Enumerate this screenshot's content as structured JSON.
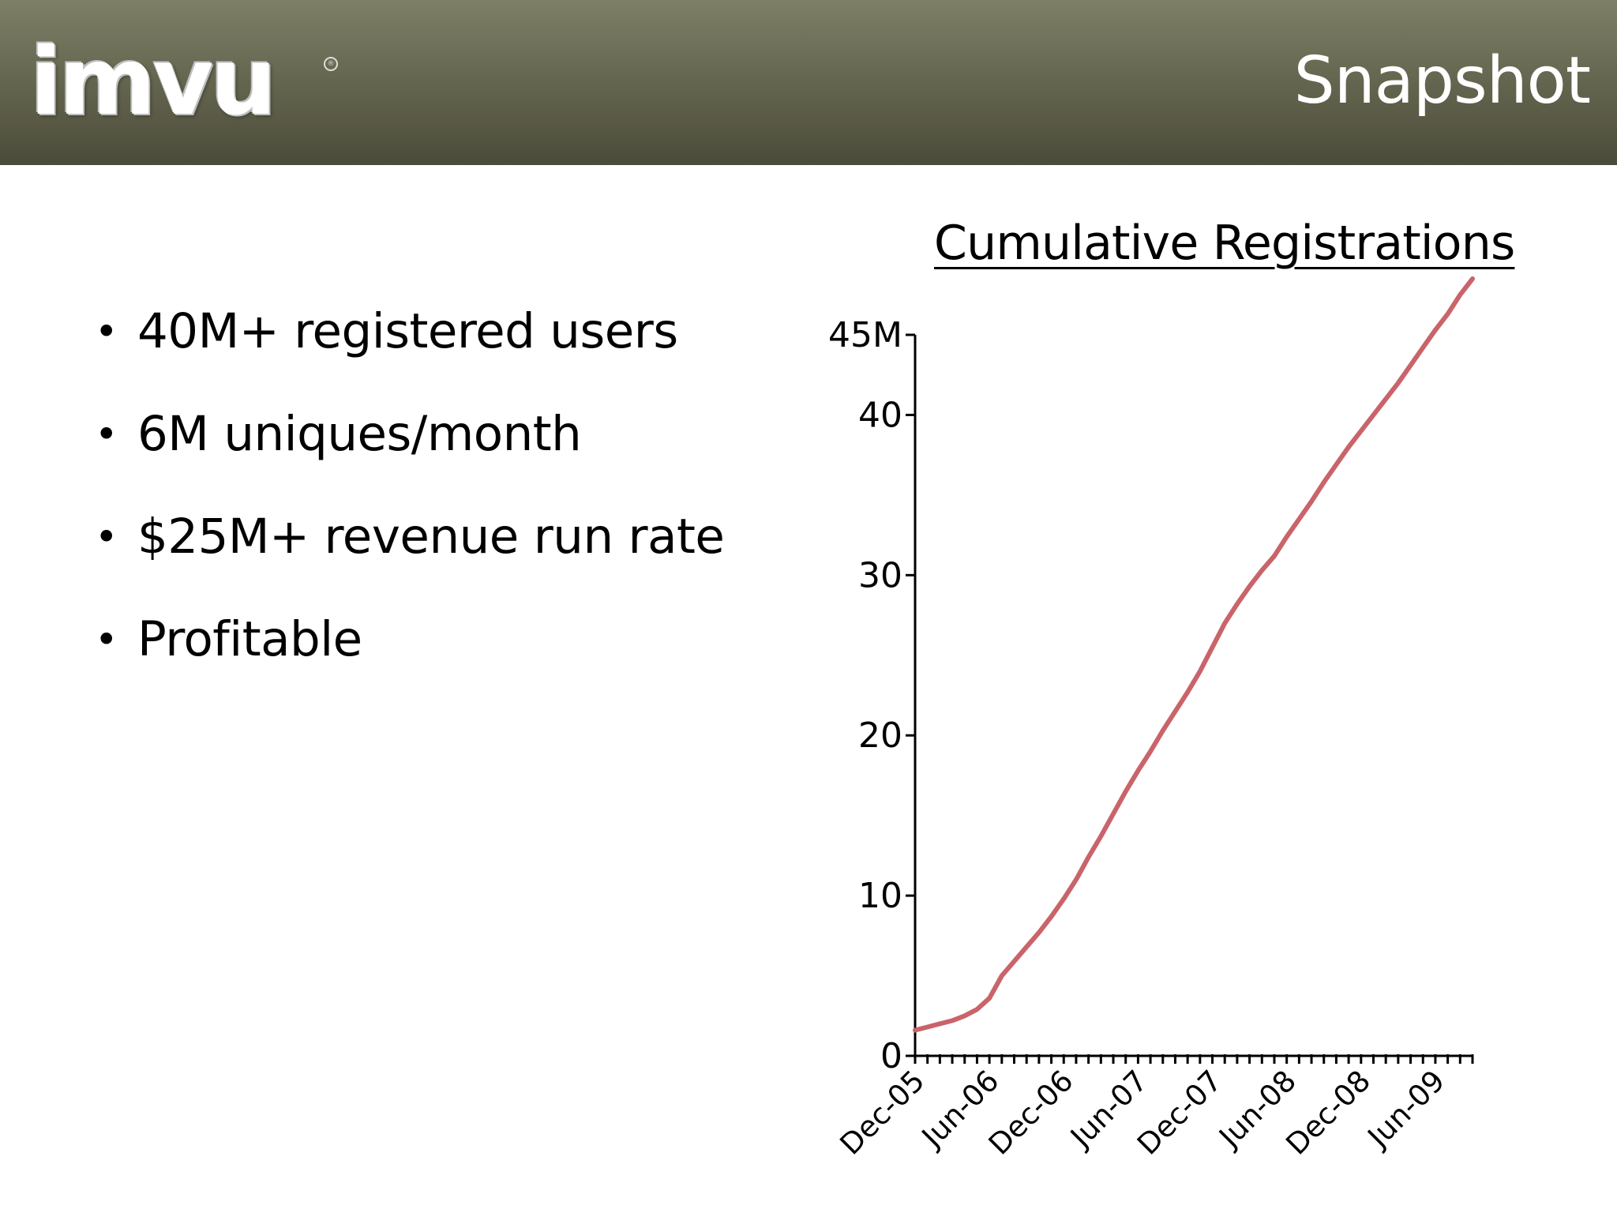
{
  "header": {
    "logo_text": "imvu",
    "logo_reg": "®",
    "title": "Snapshot"
  },
  "bullets": [
    "40M+ registered users",
    "6M uniques/month",
    "$25M+ revenue run rate",
    "Profitable"
  ],
  "colors": {
    "header_top": "#7d7f67",
    "header_bottom": "#4b4b3a",
    "line": "#c9646a"
  },
  "chart_data": {
    "type": "line",
    "title": "Cumulative Registrations",
    "xlabel": "",
    "ylabel": "",
    "ylim": [
      0,
      45
    ],
    "y_ticks": [
      0,
      10,
      20,
      30,
      40,
      45
    ],
    "y_tick_labels": [
      "0",
      "10",
      "20",
      "30",
      "40",
      "45M"
    ],
    "x_month_range": [
      0,
      45
    ],
    "x_ticks": [
      0,
      6,
      12,
      18,
      24,
      30,
      36,
      42
    ],
    "x_tick_labels": [
      "Dec-05",
      "Jun-06",
      "Dec-06",
      "Jun-07",
      "Dec-07",
      "Jun-08",
      "Dec-08",
      "Jun-09"
    ],
    "grid": false,
    "series": [
      {
        "name": "Cumulative Registrations",
        "x": [
          0,
          1,
          2,
          3,
          4,
          5,
          6,
          7,
          8,
          9,
          10,
          11,
          12,
          13,
          14,
          15,
          16,
          17,
          18,
          19,
          20,
          21,
          22,
          23,
          24,
          25,
          26,
          27,
          28,
          29,
          30,
          31,
          32,
          33,
          34,
          35,
          36,
          37,
          38,
          39,
          40,
          41,
          42,
          43,
          44,
          45
        ],
        "values": [
          1.6,
          1.8,
          2.0,
          2.2,
          2.5,
          2.9,
          3.6,
          5.0,
          5.9,
          6.8,
          7.7,
          8.7,
          9.8,
          11.0,
          12.4,
          13.7,
          15.1,
          16.5,
          17.8,
          19.0,
          20.3,
          21.5,
          22.7,
          24.0,
          25.5,
          27.0,
          28.2,
          29.3,
          30.3,
          31.2,
          32.4,
          33.5,
          34.6,
          35.8,
          36.9,
          38.0,
          39.0,
          40.0,
          41.0,
          42.0,
          43.1,
          44.2,
          45.3,
          46.3,
          47.5,
          48.5
        ]
      }
    ]
  }
}
